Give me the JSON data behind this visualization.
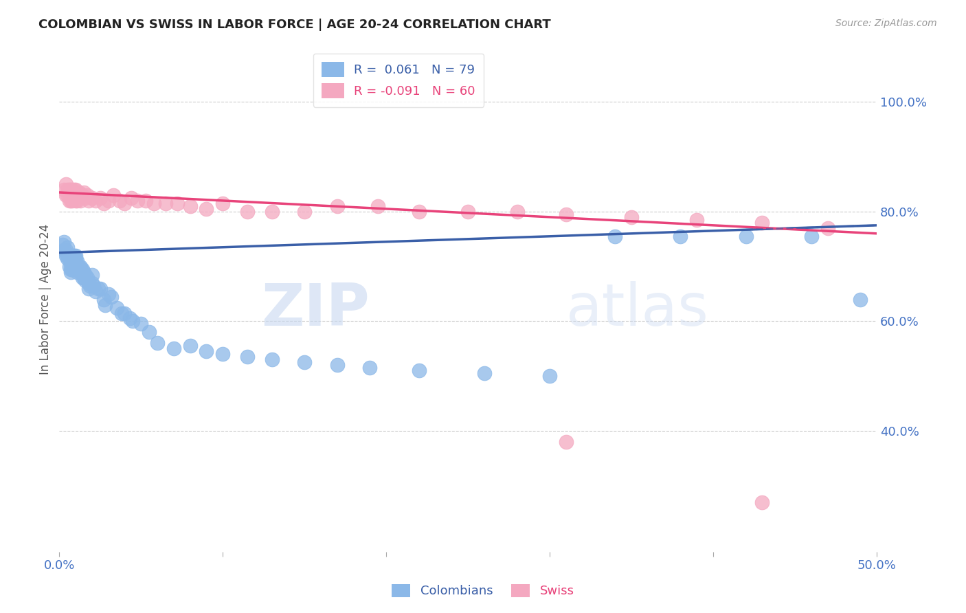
{
  "title": "COLOMBIAN VS SWISS IN LABOR FORCE | AGE 20-24 CORRELATION CHART",
  "source": "Source: ZipAtlas.com",
  "ylabel": "In Labor Force | Age 20-24",
  "xlim": [
    0.0,
    0.5
  ],
  "ylim": [
    0.18,
    1.1
  ],
  "xticks": [
    0.0,
    0.1,
    0.2,
    0.3,
    0.4,
    0.5
  ],
  "xticklabels": [
    "0.0%",
    "",
    "",
    "",
    "",
    "50.0%"
  ],
  "yticks_right": [
    0.4,
    0.6,
    0.8,
    1.0
  ],
  "ytick_labels_right": [
    "40.0%",
    "60.0%",
    "80.0%",
    "100.0%"
  ],
  "blue_color": "#8BB8E8",
  "pink_color": "#F4A8C0",
  "blue_line_color": "#3A5FA8",
  "pink_line_color": "#E8437A",
  "legend_R_blue": "0.061",
  "legend_N_blue": "79",
  "legend_R_pink": "-0.091",
  "legend_N_pink": "60",
  "watermark_zip": "ZIP",
  "watermark_atlas": "atlas",
  "blue_line_x0": 0.0,
  "blue_line_y0": 0.725,
  "blue_line_x1": 0.5,
  "blue_line_y1": 0.775,
  "pink_line_x0": 0.0,
  "pink_line_y0": 0.835,
  "pink_line_x1": 0.5,
  "pink_line_y1": 0.76,
  "blue_x": [
    0.002,
    0.003,
    0.003,
    0.004,
    0.004,
    0.004,
    0.005,
    0.005,
    0.005,
    0.006,
    0.006,
    0.006,
    0.007,
    0.007,
    0.007,
    0.007,
    0.008,
    0.008,
    0.008,
    0.008,
    0.009,
    0.009,
    0.009,
    0.01,
    0.01,
    0.01,
    0.01,
    0.011,
    0.011,
    0.011,
    0.012,
    0.012,
    0.013,
    0.013,
    0.014,
    0.014,
    0.015,
    0.015,
    0.016,
    0.016,
    0.017,
    0.018,
    0.018,
    0.019,
    0.02,
    0.02,
    0.021,
    0.022,
    0.024,
    0.025,
    0.027,
    0.028,
    0.03,
    0.032,
    0.035,
    0.038,
    0.04,
    0.043,
    0.045,
    0.05,
    0.055,
    0.06,
    0.07,
    0.08,
    0.09,
    0.1,
    0.115,
    0.13,
    0.15,
    0.17,
    0.19,
    0.22,
    0.26,
    0.3,
    0.34,
    0.38,
    0.42,
    0.46,
    0.49
  ],
  "blue_y": [
    0.74,
    0.745,
    0.73,
    0.73,
    0.72,
    0.725,
    0.735,
    0.72,
    0.715,
    0.72,
    0.715,
    0.7,
    0.715,
    0.705,
    0.695,
    0.69,
    0.72,
    0.71,
    0.7,
    0.695,
    0.72,
    0.71,
    0.7,
    0.72,
    0.715,
    0.705,
    0.695,
    0.71,
    0.7,
    0.69,
    0.7,
    0.695,
    0.7,
    0.69,
    0.695,
    0.68,
    0.69,
    0.68,
    0.685,
    0.675,
    0.68,
    0.67,
    0.66,
    0.665,
    0.685,
    0.67,
    0.665,
    0.655,
    0.66,
    0.66,
    0.64,
    0.63,
    0.65,
    0.645,
    0.625,
    0.615,
    0.615,
    0.605,
    0.6,
    0.595,
    0.58,
    0.56,
    0.55,
    0.555,
    0.545,
    0.54,
    0.535,
    0.53,
    0.525,
    0.52,
    0.515,
    0.51,
    0.505,
    0.5,
    0.755,
    0.755,
    0.755,
    0.755,
    0.64
  ],
  "pink_x": [
    0.003,
    0.004,
    0.004,
    0.005,
    0.005,
    0.006,
    0.006,
    0.006,
    0.007,
    0.007,
    0.007,
    0.008,
    0.008,
    0.008,
    0.009,
    0.009,
    0.01,
    0.01,
    0.01,
    0.011,
    0.011,
    0.012,
    0.013,
    0.014,
    0.015,
    0.016,
    0.017,
    0.018,
    0.02,
    0.022,
    0.025,
    0.027,
    0.03,
    0.033,
    0.037,
    0.04,
    0.044,
    0.048,
    0.053,
    0.058,
    0.065,
    0.072,
    0.08,
    0.09,
    0.1,
    0.115,
    0.13,
    0.15,
    0.17,
    0.195,
    0.22,
    0.25,
    0.28,
    0.31,
    0.35,
    0.39,
    0.43,
    0.47,
    0.31,
    0.43
  ],
  "pink_y": [
    0.84,
    0.85,
    0.83,
    0.84,
    0.83,
    0.84,
    0.83,
    0.82,
    0.84,
    0.83,
    0.82,
    0.84,
    0.83,
    0.82,
    0.84,
    0.83,
    0.84,
    0.83,
    0.82,
    0.835,
    0.82,
    0.835,
    0.82,
    0.83,
    0.835,
    0.825,
    0.83,
    0.82,
    0.825,
    0.82,
    0.825,
    0.815,
    0.82,
    0.83,
    0.82,
    0.815,
    0.825,
    0.82,
    0.82,
    0.815,
    0.815,
    0.815,
    0.81,
    0.805,
    0.815,
    0.8,
    0.8,
    0.8,
    0.81,
    0.81,
    0.8,
    0.8,
    0.8,
    0.795,
    0.79,
    0.785,
    0.78,
    0.77,
    0.38,
    0.27
  ]
}
